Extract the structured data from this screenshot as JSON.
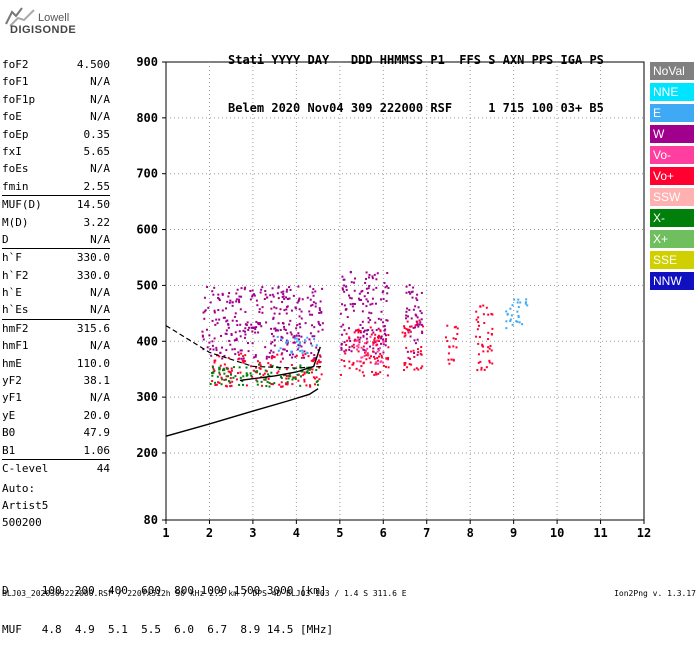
{
  "logo": {
    "line1": "Lowell",
    "line2": "DIGISONDE"
  },
  "header": {
    "labels": [
      "Stati",
      "YYYY",
      "DAY",
      "DDD",
      "HHMMSS",
      "P1",
      "FFS",
      "S",
      "AXN",
      "PPS",
      "IGA",
      "PS"
    ],
    "values": [
      "Belem",
      "2020",
      "Nov04",
      "309",
      "222000",
      "RSF",
      "",
      "1",
      "715",
      "100",
      "03+",
      "B5"
    ]
  },
  "params": [
    {
      "label": "foF2",
      "value": "4.500"
    },
    {
      "label": "foF1",
      "value": "N/A"
    },
    {
      "label": "foF1p",
      "value": "N/A"
    },
    {
      "label": "foE",
      "value": "N/A"
    },
    {
      "label": "foEp",
      "value": "0.35"
    },
    {
      "label": "fxI",
      "value": "5.65"
    },
    {
      "label": "foEs",
      "value": "N/A"
    },
    {
      "label": "fmin",
      "value": "2.55"
    },
    {
      "label": "MUF(D)",
      "value": "14.50"
    },
    {
      "label": "M(D)",
      "value": "3.22"
    },
    {
      "label": "D",
      "value": "N/A"
    },
    {
      "label": "h`F",
      "value": "330.0"
    },
    {
      "label": "h`F2",
      "value": "330.0"
    },
    {
      "label": "h`E",
      "value": "N/A"
    },
    {
      "label": "h`Es",
      "value": "N/A"
    },
    {
      "label": "hmF2",
      "value": "315.6"
    },
    {
      "label": "hmF1",
      "value": "N/A"
    },
    {
      "label": "hmE",
      "value": "110.0"
    },
    {
      "label": "yF2",
      "value": "38.1"
    },
    {
      "label": "yF1",
      "value": "N/A"
    },
    {
      "label": "yE",
      "value": "20.0"
    },
    {
      "label": "B0",
      "value": "47.9"
    },
    {
      "label": "B1",
      "value": "1.06"
    },
    {
      "label": "C-level",
      "value": "44"
    }
  ],
  "auto": {
    "line1": "Auto:",
    "line2": "Artist5",
    "line3": "500200"
  },
  "legend": [
    {
      "label": "NoVal",
      "color": "#808080"
    },
    {
      "label": "NNE",
      "color": "#00e5ff"
    },
    {
      "label": "E",
      "color": "#3fa9f5"
    },
    {
      "label": "W",
      "color": "#a0008c"
    },
    {
      "label": "Vo-",
      "color": "#ff3fa0"
    },
    {
      "label": "Vo+",
      "color": "#ff0030"
    },
    {
      "label": "SSW",
      "color": "#ffb0b0"
    },
    {
      "label": "X-",
      "color": "#00800a"
    },
    {
      "label": "X+",
      "color": "#6fbf5f"
    },
    {
      "label": "SSE",
      "color": "#d0d000"
    },
    {
      "label": "NNW",
      "color": "#1010c0"
    }
  ],
  "bottom": {
    "row1": "D     100  200  400  600  800 1000 1500 3000 [km]",
    "row2": "MUF   4.8  4.9  5.1  5.5  6.0  6.7  8.9 14.5 [MHz]"
  },
  "footer": {
    "left": "BLJ03_2020309222000.RSF / 220fx512h 50 kHz 2.5 km / DPS-4D BLJ03 103 / 1.4 S 311.6 E",
    "right": "Ion2Png v. 1.3.17"
  },
  "chart_data": {
    "type": "scatter",
    "xlim": [
      1,
      12
    ],
    "ylim": [
      80,
      900
    ],
    "x_ticks": [
      1,
      2,
      3,
      4,
      5,
      6,
      7,
      8,
      9,
      10,
      11,
      12
    ],
    "y_ticks": [
      80,
      200,
      300,
      400,
      500,
      600,
      700,
      800,
      900
    ],
    "grid": true,
    "traces": [
      {
        "category": "W",
        "freq_range": [
          1.8,
          4.6
        ],
        "h_range": [
          370,
          500
        ]
      },
      {
        "category": "W",
        "freq_range": [
          5.0,
          6.1
        ],
        "h_range": [
          380,
          530
        ]
      },
      {
        "category": "W",
        "freq_range": [
          6.5,
          6.9
        ],
        "h_range": [
          370,
          510
        ]
      },
      {
        "category": "Vo+",
        "freq_range": [
          2.0,
          4.6
        ],
        "h_range": [
          320,
          380
        ]
      },
      {
        "category": "Vo+",
        "freq_range": [
          5.0,
          6.1
        ],
        "h_range": [
          340,
          430
        ]
      },
      {
        "category": "Vo+",
        "freq_range": [
          6.4,
          6.9
        ],
        "h_range": [
          350,
          440
        ]
      },
      {
        "category": "Vo+",
        "freq_range": [
          7.4,
          7.7
        ],
        "h_range": [
          360,
          430
        ]
      },
      {
        "category": "Vo+",
        "freq_range": [
          8.1,
          8.5
        ],
        "h_range": [
          350,
          470
        ]
      },
      {
        "category": "E",
        "freq_range": [
          3.5,
          4.5
        ],
        "h_range": [
          380,
          410
        ]
      },
      {
        "category": "E",
        "freq_range": [
          8.8,
          9.3
        ],
        "h_range": [
          420,
          480
        ]
      },
      {
        "category": "X-",
        "freq_range": [
          2.0,
          4.5
        ],
        "h_range": [
          320,
          360
        ]
      },
      {
        "category": "Vo-",
        "freq_range": [
          5.3,
          6.0
        ],
        "h_range": [
          360,
          410
        ]
      }
    ],
    "profile_solid": [
      {
        "x": 1.0,
        "y": 230
      },
      {
        "x": 2.0,
        "y": 252
      },
      {
        "x": 3.0,
        "y": 275
      },
      {
        "x": 3.8,
        "y": 293
      },
      {
        "x": 4.3,
        "y": 305
      },
      {
        "x": 4.5,
        "y": 315
      }
    ],
    "trace_solid": [
      {
        "x": 2.7,
        "y": 330
      },
      {
        "x": 3.0,
        "y": 333
      },
      {
        "x": 3.5,
        "y": 338
      },
      {
        "x": 4.0,
        "y": 345
      },
      {
        "x": 4.4,
        "y": 355
      },
      {
        "x": 4.55,
        "y": 390
      }
    ],
    "trace_dashed": [
      {
        "x": 1.0,
        "y": 428
      },
      {
        "x": 2.0,
        "y": 380
      },
      {
        "x": 3.0,
        "y": 355
      },
      {
        "x": 4.0,
        "y": 352
      },
      {
        "x": 4.6,
        "y": 355
      }
    ]
  }
}
